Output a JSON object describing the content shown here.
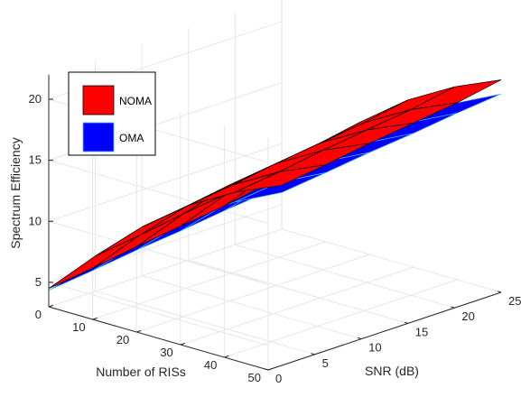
{
  "chart_data": {
    "type": "surface",
    "title": "",
    "xlabel": "SNR (dB)",
    "ylabel": "Number of RISs",
    "zlabel": "Spectrum Efficiency",
    "xlim": [
      0,
      25
    ],
    "ylim": [
      0,
      50
    ],
    "zlim": [
      3,
      22
    ],
    "xticks": [
      0,
      5,
      10,
      15,
      20,
      25
    ],
    "yticks": [
      0,
      10,
      20,
      30,
      40,
      50
    ],
    "zticks": [
      5,
      10,
      15,
      20
    ],
    "grid": true,
    "legend_position": "top-left",
    "x": [
      0,
      5,
      10,
      15,
      20,
      25
    ],
    "y": [
      0,
      10,
      20,
      30,
      40,
      50
    ],
    "series": [
      {
        "name": "OMA",
        "color": "#0000ff",
        "edge_color": "#4dbeee",
        "z": [
          [
            4.35,
            5.35,
            6.2,
            6.6,
            6.5,
            6.0
          ],
          [
            7.0,
            8.0,
            8.85,
            9.25,
            9.15,
            8.65
          ],
          [
            9.7,
            10.7,
            11.55,
            11.95,
            11.85,
            11.35
          ],
          [
            12.3,
            13.3,
            14.15,
            14.55,
            14.45,
            13.95
          ],
          [
            15.0,
            16.0,
            16.85,
            17.25,
            17.15,
            16.65
          ],
          [
            17.6,
            18.6,
            19.45,
            19.85,
            19.75,
            19.25
          ]
        ]
      },
      {
        "name": "NOMA",
        "color": "#ff0000",
        "edge_color": "#000000",
        "z": [
          [
            4.5,
            5.9,
            7.0,
            7.5,
            7.3,
            6.6
          ],
          [
            7.2,
            8.6,
            9.7,
            10.2,
            10.0,
            9.3
          ],
          [
            10.0,
            11.4,
            12.5,
            13.0,
            12.8,
            12.1
          ],
          [
            12.7,
            14.1,
            15.2,
            15.7,
            15.5,
            14.8
          ],
          [
            15.4,
            16.8,
            17.9,
            18.4,
            18.2,
            17.5
          ],
          [
            18.3,
            19.7,
            20.8,
            21.3,
            21.1,
            20.4
          ]
        ]
      }
    ]
  }
}
